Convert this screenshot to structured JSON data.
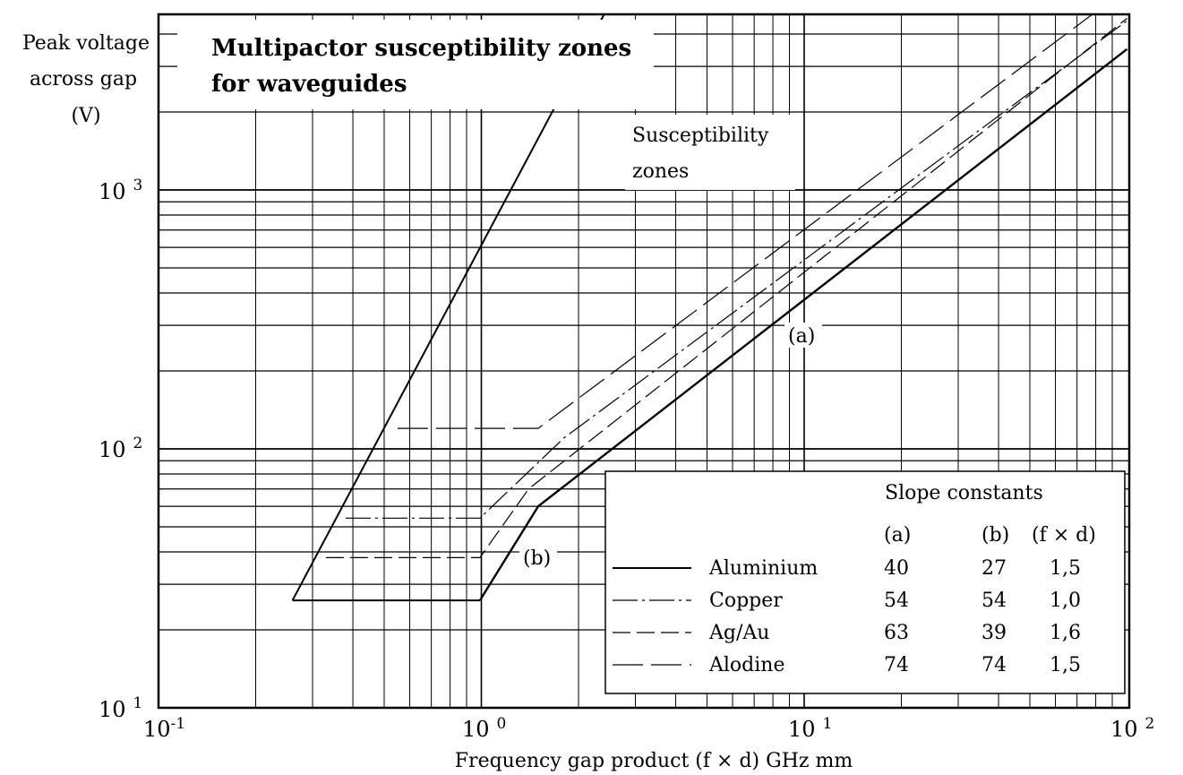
{
  "chart_data": {
    "type": "line",
    "title_lines": [
      "Multipactor susceptibility zones",
      "for waveguides"
    ],
    "xlabel": "Frequency gap product (f × d) GHz mm",
    "ylabel_lines": [
      "Peak voltage",
      "across gap",
      "(V)"
    ],
    "xscale": "log",
    "yscale": "log",
    "xlim": [
      0.1,
      100
    ],
    "ylim": [
      10,
      5000
    ],
    "grid": true,
    "x_ticks": [
      {
        "value": 0.1,
        "base": "10",
        "exp": "-1"
      },
      {
        "value": 1,
        "base": "10",
        "exp": "0"
      },
      {
        "value": 10,
        "base": "10",
        "exp": "1"
      },
      {
        "value": 100,
        "base": "10",
        "exp": "2"
      }
    ],
    "y_ticks": [
      {
        "value": 10,
        "base": "10",
        "exp": "1"
      },
      {
        "value": 100,
        "base": "10",
        "exp": "2"
      },
      {
        "value": 1000,
        "base": "10",
        "exp": "3"
      }
    ],
    "zone_boundary": {
      "upper": [
        [
          0.26,
          26
        ],
        [
          2.45,
          5000
        ]
      ],
      "lower": [
        [
          0.26,
          26
        ],
        [
          0.99,
          26
        ]
      ]
    },
    "series": [
      {
        "name": "Aluminium",
        "style": "solid",
        "points": [
          [
            0.99,
            26
          ],
          [
            1.5,
            60
          ],
          [
            100,
            3500
          ]
        ]
      },
      {
        "name": "Copper",
        "style": "dashdot",
        "points": [
          [
            0.38,
            54
          ],
          [
            0.99,
            54
          ],
          [
            1.8,
            110
          ],
          [
            100,
            4500
          ]
        ]
      },
      {
        "name": "Ag/Au",
        "style": "dashed",
        "points": [
          [
            0.33,
            38
          ],
          [
            0.99,
            38
          ],
          [
            1.4,
            70
          ],
          [
            100,
            4600
          ]
        ]
      },
      {
        "name": "Alodine",
        "style": "longdash",
        "points": [
          [
            0.55,
            120
          ],
          [
            1.5,
            120
          ],
          [
            100,
            6000
          ]
        ]
      }
    ],
    "annotations": [
      {
        "text_lines": [
          "Susceptibility",
          "zones"
        ]
      },
      {
        "text": "(a)",
        "at": [
          9.2,
          240
        ]
      },
      {
        "text": "(b)",
        "at": [
          1.35,
          38
        ]
      }
    ],
    "legend": {
      "placement": "bottom-right",
      "heading": "Slope constants",
      "columns": [
        "(a)",
        "(b)",
        "(f × d)"
      ],
      "rows": [
        {
          "name": "Aluminium",
          "style": "solid",
          "a": "40",
          "b": "27",
          "fd": "1,5"
        },
        {
          "name": "Copper",
          "style": "dashdot",
          "a": "54",
          "b": "54",
          "fd": "1,0"
        },
        {
          "name": "Ag/Au",
          "style": "dashed",
          "a": "63",
          "b": "39",
          "fd": "1,6"
        },
        {
          "name": "Alodine",
          "style": "longdash",
          "a": "74",
          "b": "74",
          "fd": "1,5"
        }
      ]
    }
  }
}
